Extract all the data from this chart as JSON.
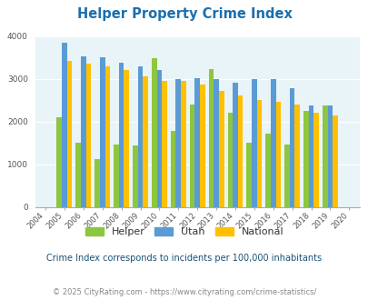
{
  "title": "Helper Property Crime Index",
  "years": [
    2004,
    2005,
    2006,
    2007,
    2008,
    2009,
    2010,
    2011,
    2012,
    2013,
    2014,
    2015,
    2016,
    2017,
    2018,
    2019,
    2020
  ],
  "helper": [
    0,
    2100,
    1500,
    1130,
    1460,
    1430,
    3490,
    1790,
    2400,
    3220,
    2210,
    1500,
    1720,
    1460,
    2250,
    2380,
    0
  ],
  "utah": [
    0,
    3840,
    3520,
    3500,
    3370,
    3300,
    3210,
    3000,
    3010,
    2990,
    2910,
    3000,
    2990,
    2790,
    2370,
    2370,
    0
  ],
  "national": [
    0,
    3420,
    3350,
    3280,
    3200,
    3050,
    2960,
    2940,
    2870,
    2720,
    2610,
    2500,
    2460,
    2390,
    2200,
    2140,
    0
  ],
  "helper_color": "#8dc63f",
  "utah_color": "#5b9bd5",
  "national_color": "#ffc000",
  "bg_color": "#e8f4f8",
  "title_color": "#1a6faf",
  "ylim": [
    0,
    4000
  ],
  "yticks": [
    0,
    1000,
    2000,
    3000,
    4000
  ],
  "subtitle": "Crime Index corresponds to incidents per 100,000 inhabitants",
  "footer": "© 2025 CityRating.com - https://www.cityrating.com/crime-statistics/",
  "subtitle_color": "#1a5276",
  "footer_color": "#888888",
  "legend_text_color": "#333333"
}
